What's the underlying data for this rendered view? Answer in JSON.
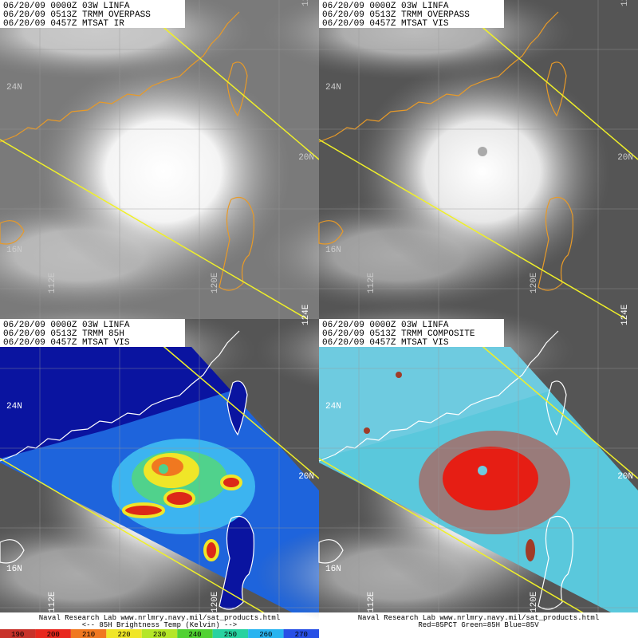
{
  "panels": [
    {
      "header": [
        "06/20/09 0000Z 03W LINFA",
        "06/20/09 0513Z TRMM OVERPASS",
        "06/20/09 0457Z MTSAT IR"
      ]
    },
    {
      "header": [
        "06/20/09 0000Z 03W LINFA",
        "06/20/09 0513Z TRMM OVERPASS",
        "06/20/09 0457Z MTSAT VIS"
      ]
    },
    {
      "header": [
        "06/20/09 0000Z 03W LINFA",
        "06/20/09 0513Z TRMM 85H",
        "06/20/09 0457Z MTSAT VIS"
      ],
      "footer": [
        "Naval Research Lab  www.nrlmry.navy.mil/sat_products.html",
        "<--   85H Brightness Temp (Kelvin)   -->"
      ]
    },
    {
      "header": [
        "06/20/09 0000Z 03W LINFA",
        "06/20/09 0513Z TRMM COMPOSITE",
        "06/20/09 0457Z MTSAT VIS"
      ],
      "footer": [
        "Naval Research Lab  www.nrlmry.navy.mil/sat_products.html",
        "Red=85PCT  Green=85H  Blue=85V"
      ]
    }
  ],
  "grid_labels": {
    "lat": [
      "24N",
      "20N",
      "16N"
    ],
    "lon": [
      "112E",
      "120E",
      "124E"
    ]
  },
  "colorbar": {
    "labels": [
      "190",
      "200",
      "210",
      "220",
      "230",
      "240",
      "250",
      "260",
      "270"
    ],
    "colors": [
      "#c8322a",
      "#e8281e",
      "#f07820",
      "#f0e628",
      "#b4e628",
      "#50d232",
      "#28d2a0",
      "#28b4f0",
      "#2850e6"
    ]
  }
}
